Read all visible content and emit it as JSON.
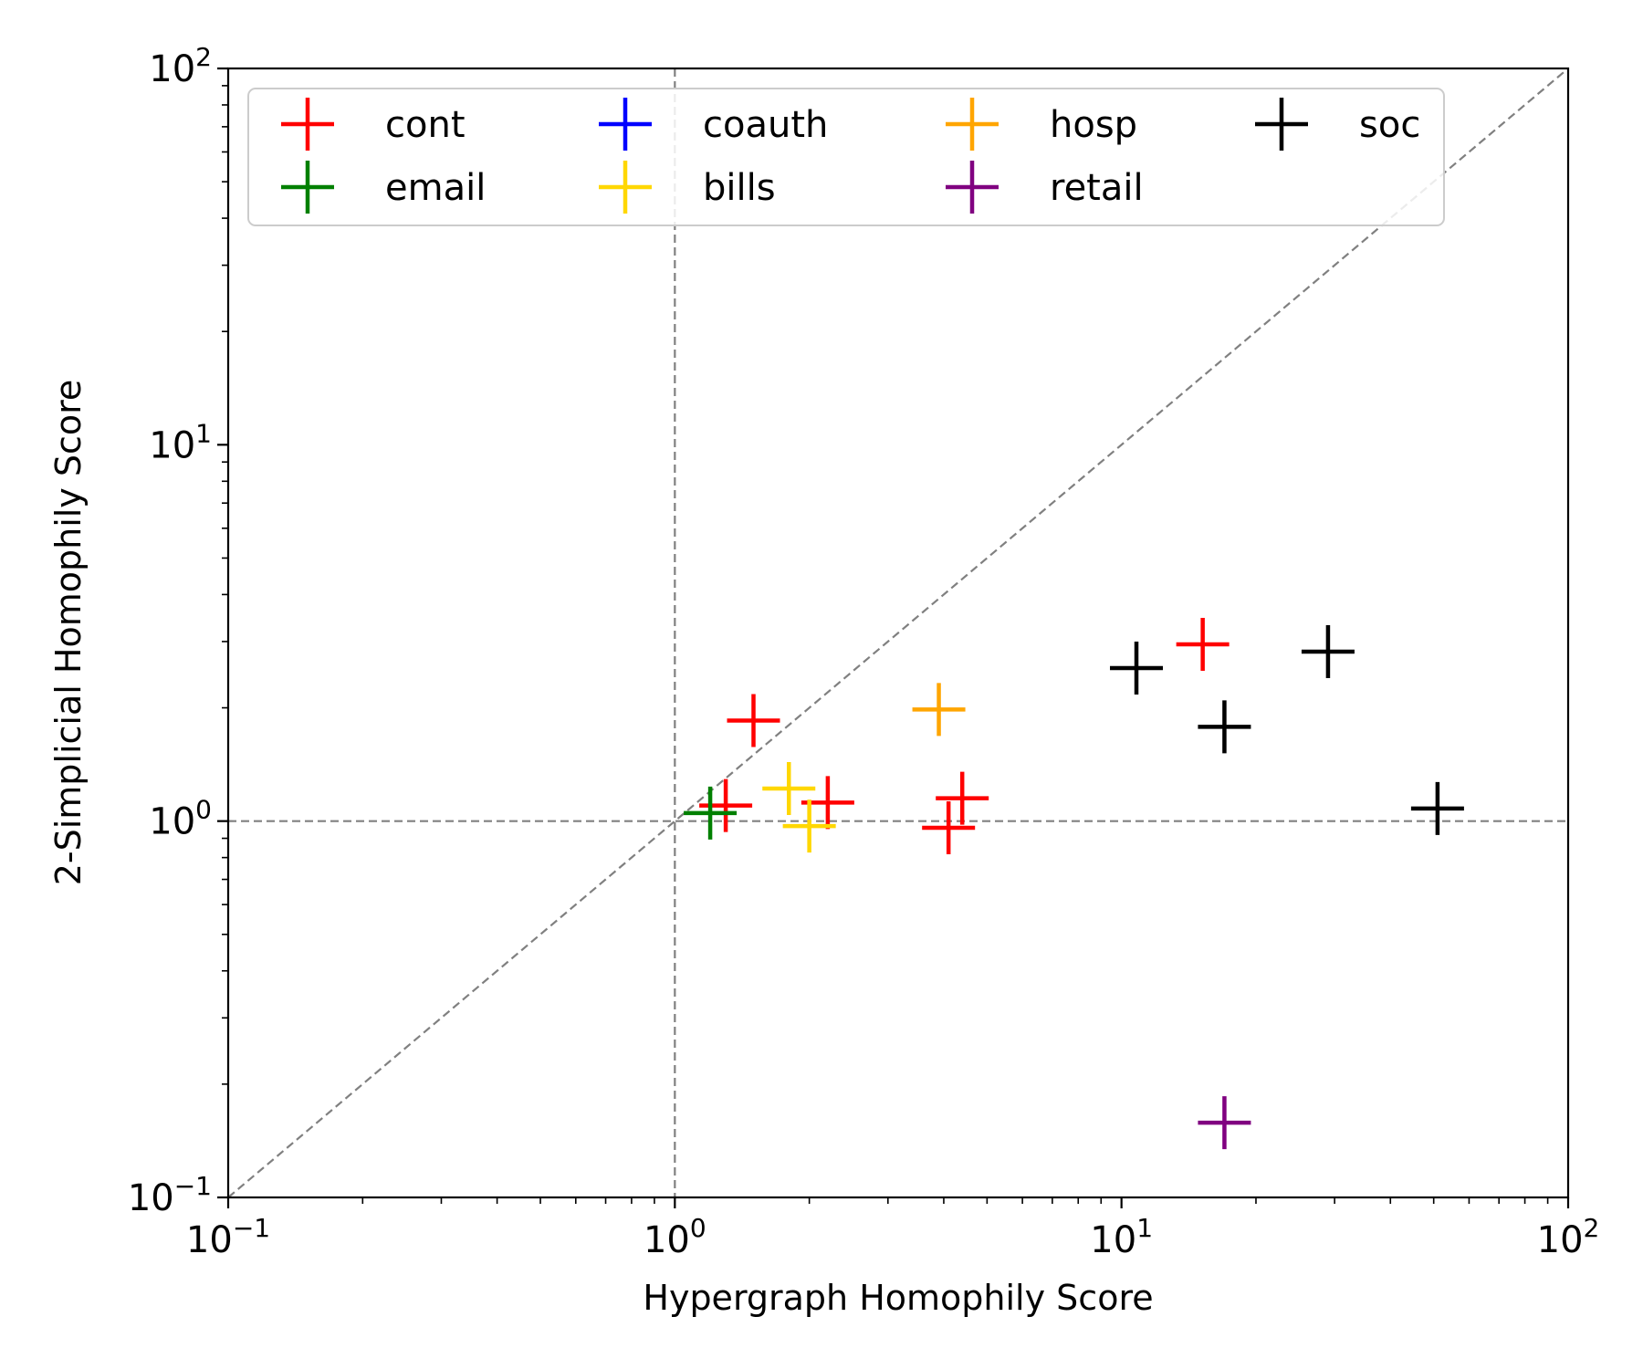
{
  "chart_data": {
    "type": "scatter",
    "xscale": "log",
    "yscale": "log",
    "xlabel": "Hypergraph Homophily Score",
    "ylabel": "2-Simplicial Homophily Score",
    "xlim": [
      0.1,
      100
    ],
    "ylim": [
      0.1,
      100
    ],
    "ticks": [
      {
        "value": 0.1,
        "base": "10",
        "exp": "−1"
      },
      {
        "value": 1,
        "base": "10",
        "exp": "0"
      },
      {
        "value": 10,
        "base": "10",
        "exp": "1"
      },
      {
        "value": 100,
        "base": "10",
        "exp": "2"
      }
    ],
    "reference_lines": {
      "diagonal": true,
      "x_equals": 1,
      "y_equals": 1,
      "color": "#808080",
      "style": "dashed"
    },
    "marker": "+",
    "legend": {
      "placement": "top-left",
      "columns": 4
    },
    "series": [
      {
        "name": "cont",
        "color": "#ff0000",
        "points": [
          [
            1.3,
            1.1
          ],
          [
            1.5,
            1.85
          ],
          [
            2.2,
            1.12
          ],
          [
            4.1,
            0.96
          ],
          [
            4.4,
            1.15
          ],
          [
            15.2,
            2.95
          ]
        ]
      },
      {
        "name": "email",
        "color": "#008000",
        "points": [
          [
            1.2,
            1.05
          ]
        ]
      },
      {
        "name": "coauth",
        "color": "#0000ff",
        "points": []
      },
      {
        "name": "bills",
        "color": "#ffd700",
        "points": [
          [
            1.8,
            1.22
          ],
          [
            2.0,
            0.97
          ]
        ]
      },
      {
        "name": "hosp",
        "color": "#ffa500",
        "points": [
          [
            3.9,
            1.98
          ]
        ]
      },
      {
        "name": "retail",
        "color": "#800080",
        "points": [
          [
            17.0,
            0.158
          ]
        ]
      },
      {
        "name": "soc",
        "color": "#000000",
        "points": [
          [
            10.8,
            2.55
          ],
          [
            17.0,
            1.78
          ],
          [
            29.0,
            2.82
          ],
          [
            51.0,
            1.08
          ]
        ]
      }
    ]
  }
}
